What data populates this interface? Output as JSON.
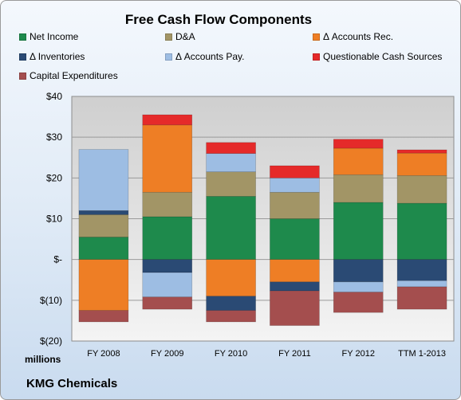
{
  "chart_data": {
    "type": "bar",
    "stacked": true,
    "title": "Free Cash Flow Components",
    "categories": [
      "FY 2008",
      "FY 2009",
      "FY 2010",
      "FY 2011",
      "FY 2012",
      "TTM 1-2013"
    ],
    "ylim": [
      -20,
      40
    ],
    "yticks": [
      -20,
      -10,
      0,
      10,
      20,
      30,
      40
    ],
    "ytick_labels": [
      "$(20)",
      "$(10)",
      "$-",
      "$10",
      "$20",
      "$30",
      "$40"
    ],
    "unit_label": "millions",
    "grid": true,
    "legend_position": "top",
    "series": [
      {
        "name": "Net Income",
        "color": "#1e8a4c",
        "values": [
          5.5,
          10.5,
          15.5,
          10.0,
          14.0,
          13.8
        ]
      },
      {
        "name": "D&A",
        "color": "#a29566",
        "values": [
          5.5,
          6.0,
          6.0,
          6.5,
          6.8,
          6.8
        ]
      },
      {
        "name": "Δ Accounts Rec.",
        "color": "#ee7e25",
        "values": [
          -12.5,
          16.5,
          -9.0,
          -5.5,
          6.5,
          5.5
        ]
      },
      {
        "name": "Δ Inventories",
        "color": "#2a4a74",
        "values": [
          1.0,
          -3.2,
          -3.5,
          -2.2,
          -5.5,
          -5.2
        ]
      },
      {
        "name": "Δ Accounts Pay.",
        "color": "#9dbde3",
        "values": [
          15.0,
          -6.0,
          4.5,
          3.5,
          -2.5,
          -1.5
        ]
      },
      {
        "name": "Questionable Cash Sources",
        "color": "#e52a2a",
        "values": [
          0.0,
          2.5,
          2.7,
          3.0,
          2.2,
          0.8
        ]
      },
      {
        "name": "Capital Expenditures",
        "color": "#a44e4e",
        "values": [
          -2.8,
          -3.0,
          -2.8,
          -8.5,
          -5.0,
          -5.5
        ]
      }
    ]
  },
  "footer": {
    "company": "KMG Chemicals"
  }
}
